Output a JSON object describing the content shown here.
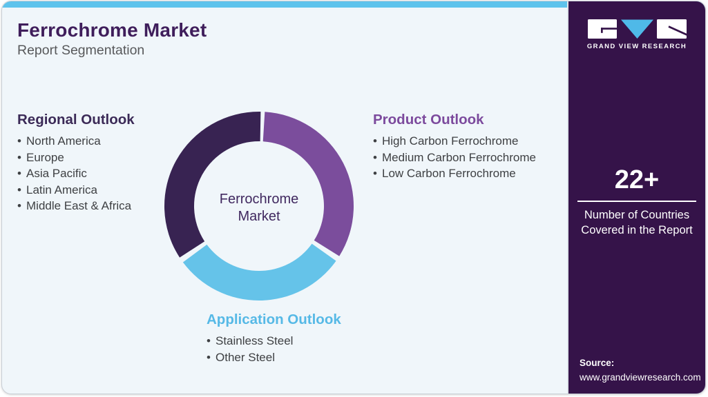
{
  "header": {
    "title": "Ferrochrome Market",
    "subtitle": "Report Segmentation"
  },
  "sections": {
    "regional": {
      "heading": "Regional Outlook",
      "accent_color": "#3B2A57",
      "items": [
        "North America",
        "Europe",
        "Asia Pacific",
        "Latin America",
        "Middle East & Africa"
      ]
    },
    "product": {
      "heading": "Product Outlook",
      "accent_color": "#7C4A9D",
      "items": [
        "High Carbon Ferrochrome",
        "Medium Carbon Ferrochrome",
        "Low Carbon Ferrochrome"
      ]
    },
    "application": {
      "heading": "Application Outlook",
      "accent_color": "#56B9E6",
      "items": [
        "Stainless Steel",
        "Other Steel"
      ]
    }
  },
  "chart_data": {
    "type": "donut",
    "title": "Ferrochrome Market Report Segmentation",
    "center_label": "Ferrochrome Market",
    "outer_radius": 137,
    "inner_radius": 94,
    "segments": [
      {
        "label": "Product Outlook",
        "color": "#7B4D9C",
        "start_deg": 3.5,
        "end_deg": 122
      },
      {
        "label": "Application Outlook",
        "color": "#65C3E9",
        "start_deg": 125.5,
        "end_deg": 233.5
      },
      {
        "label": "Regional Outlook",
        "color": "#382352",
        "start_deg": 237,
        "end_deg": 361
      }
    ]
  },
  "sidebar": {
    "bg_color": "#351349",
    "logo": {
      "brand": "GRAND VIEW RESEARCH",
      "v_color": "#4FB9E8"
    },
    "stat": {
      "value": "22+",
      "caption": "Number of Countries Covered in the Report"
    },
    "source": {
      "label": "Source:",
      "url": "www.grandviewresearch.com"
    }
  },
  "accent_bar_color": "#5EC3EC"
}
